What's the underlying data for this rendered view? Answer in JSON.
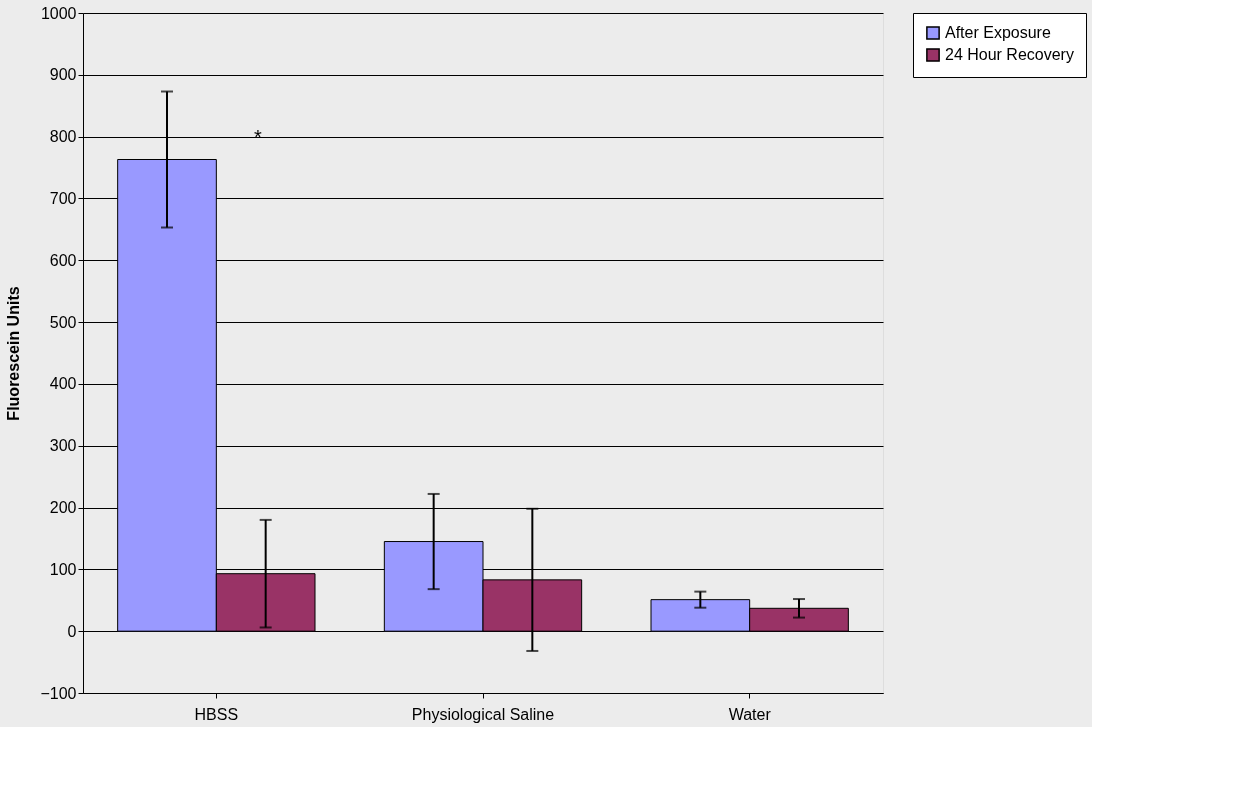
{
  "chart_data": {
    "type": "bar",
    "ylabel": "Fluorescein Units",
    "categories": [
      "HBSS",
      "Physiological Saline",
      "Water"
    ],
    "series": [
      {
        "name": "After Exposure",
        "color": "#9999ff",
        "values": [
          763,
          145,
          51
        ],
        "errors": [
          110,
          77,
          13
        ]
      },
      {
        "name": "24 Hour Recovery",
        "color": "#993366",
        "values": [
          93,
          83,
          37
        ],
        "errors": [
          87,
          115,
          15
        ]
      }
    ],
    "ylim": [
      -100,
      1000
    ],
    "yticks": [
      -100,
      0,
      100,
      200,
      300,
      400,
      500,
      600,
      700,
      800,
      900,
      1000
    ],
    "grid": "y",
    "legend": "right",
    "annotations": [
      "*"
    ]
  }
}
